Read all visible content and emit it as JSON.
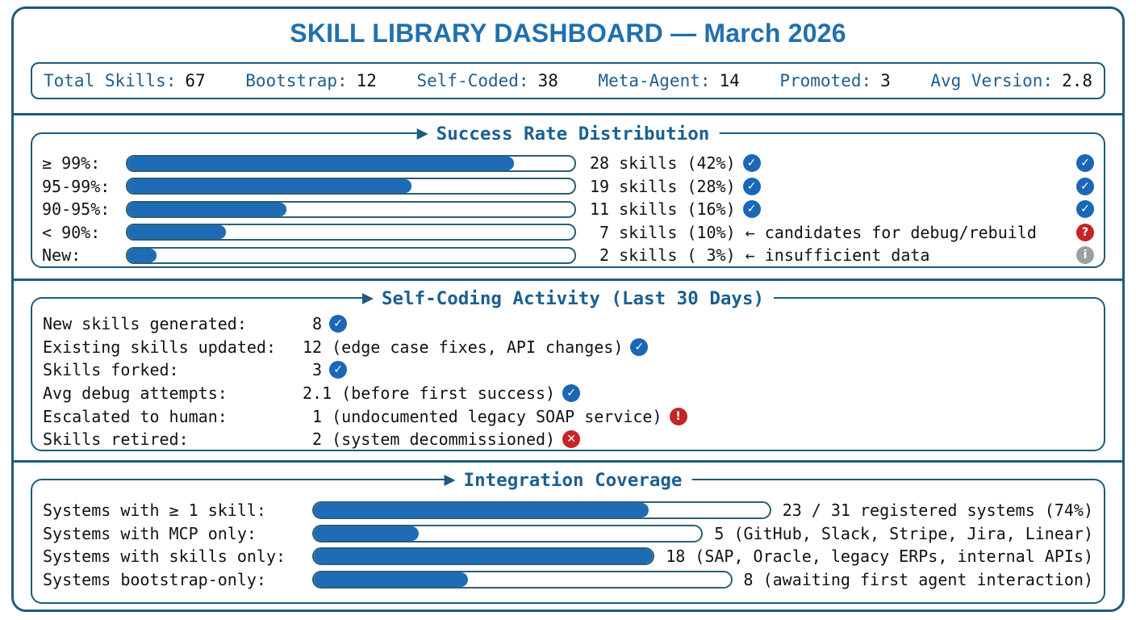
{
  "title": "SKILL LIBRARY DASHBOARD — March 2026",
  "colors": {
    "accent_blue": "#1E6CB5",
    "border_blue": "#1E5B7E",
    "title_blue": "#2070AE",
    "section_header_blue": "#1C5F90",
    "stat_label_blue": "#215F8C",
    "icon_blue": "#1A67B5",
    "icon_red": "#C52525",
    "icon_gray": "#9CA0A4",
    "bar_track_border": "#2E5E73",
    "text": "#0F1216"
  },
  "stats": [
    {
      "label": "Total Skills:",
      "value": "67"
    },
    {
      "label": "Bootstrap:",
      "value": "12"
    },
    {
      "label": "Self-Coded:",
      "value": "38"
    },
    {
      "label": "Meta-Agent:",
      "value": "14"
    },
    {
      "label": "Promoted:",
      "value": "3"
    },
    {
      "label": "Avg Version:",
      "value": "2.8"
    }
  ],
  "sections": {
    "success": {
      "title": "Success Rate Distribution",
      "rows": [
        {
          "label": "≥ 99%:",
          "fill_pct": 86.5,
          "text": "28 skills (42%)",
          "inline_icon": "check",
          "right_icon": "check"
        },
        {
          "label": "95-99%:",
          "fill_pct": 63.5,
          "text": "19 skills (28%)",
          "inline_icon": "check",
          "right_icon": "check"
        },
        {
          "label": "90-95%:",
          "fill_pct": 35.5,
          "text": "11 skills (16%)",
          "inline_icon": "check",
          "right_icon": "check"
        },
        {
          "label": "< 90%:",
          "fill_pct": 22,
          "text": " 7 skills (10%) ← candidates for debug/rebuild",
          "inline_icon": null,
          "right_icon": "question"
        },
        {
          "label": "New:",
          "fill_pct": 6.5,
          "text": " 2 skills ( 3%) ← insufficient data",
          "inline_icon": null,
          "right_icon": "info"
        }
      ]
    },
    "activity": {
      "title": "Self-Coding Activity (Last 30 Days)",
      "rows": [
        {
          "label": "New skills generated:",
          "value": " 8",
          "icon": "check"
        },
        {
          "label": "Existing skills updated:",
          "value": "12 (edge case fixes, API changes)",
          "icon": "check"
        },
        {
          "label": "Skills forked:",
          "value": " 3",
          "icon": "check"
        },
        {
          "label": "Avg debug attempts:",
          "value": "2.1 (before first success)",
          "icon": "check"
        },
        {
          "label": "Escalated to human:",
          "value": " 1 (undocumented legacy SOAP service)",
          "icon": "exclaim"
        },
        {
          "label": "Skills retired:",
          "value": " 2 (system decommissioned)",
          "icon": "cross"
        }
      ]
    },
    "integration": {
      "title": "Integration Coverage",
      "rows": [
        {
          "label": "Systems with ≥ 1 skill:",
          "fill_pct": 73.5,
          "text": "23 / 31 registered systems (74%)"
        },
        {
          "label": "Systems with MCP only:",
          "fill_pct": 27,
          "text": "5 (GitHub, Slack, Stripe, Jira, Linear)"
        },
        {
          "label": "Systems with skills only:",
          "fill_pct": 100,
          "text": "18 (SAP, Oracle, legacy ERPs, internal APIs)"
        },
        {
          "label": "Systems bootstrap-only:",
          "fill_pct": 37,
          "text": "8 (awaiting first agent interaction)"
        }
      ]
    }
  },
  "chart_data": [
    {
      "type": "bar",
      "title": "Success Rate Distribution",
      "categories": [
        "≥ 99%",
        "95-99%",
        "90-95%",
        "< 90%",
        "New"
      ],
      "values": [
        28,
        19,
        11,
        7,
        2
      ],
      "percent_labels": [
        42,
        28,
        16,
        10,
        3
      ],
      "ylabel": "skills",
      "annotations": [
        "",
        "",
        "",
        "candidates for debug/rebuild",
        "insufficient data"
      ],
      "legend_position": "none",
      "grid": false
    },
    {
      "type": "bar",
      "title": "Integration Coverage",
      "categories": [
        "Systems with ≥ 1 skill",
        "Systems with MCP only",
        "Systems with skills only",
        "Systems bootstrap-only"
      ],
      "values": [
        23,
        5,
        18,
        8
      ],
      "total_registered_systems": 31,
      "notes": [
        "23 / 31 registered systems (74%)",
        "GitHub, Slack, Stripe, Jira, Linear",
        "SAP, Oracle, legacy ERPs, internal APIs",
        "awaiting first agent interaction"
      ],
      "legend_position": "none",
      "grid": false
    }
  ]
}
